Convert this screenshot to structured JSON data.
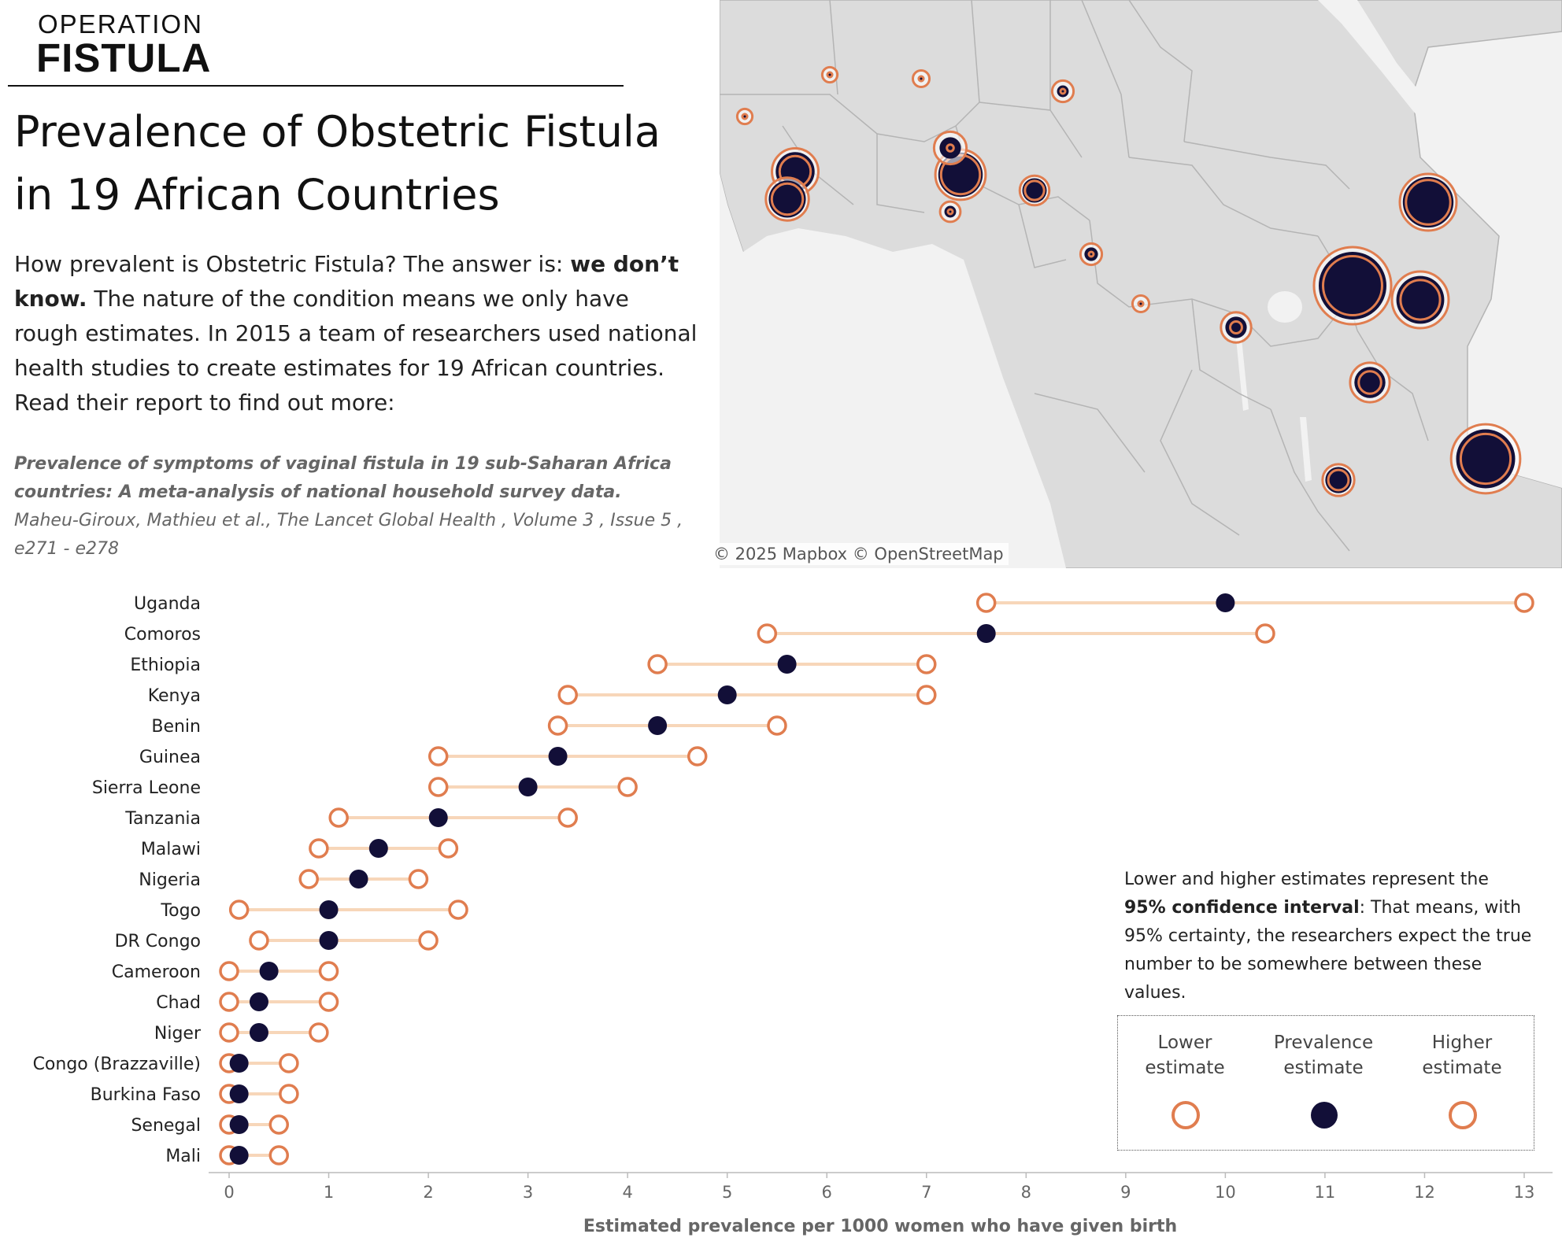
{
  "logo": {
    "line1": "OPERATION",
    "line2": "FISTULA"
  },
  "title": "Prevalence of Obstetric Fistula in 19 African Countries",
  "intro": {
    "part1": "How prevalent is Obstetric Fistula? The answer is: ",
    "bold": "we don’t know.",
    "part2": " The nature of the condition means we only have rough estimates. In 2015 a team of researchers used national health studies to create estimates for 19 African countries. Read their report to find out more:"
  },
  "citation": {
    "bold": "Prevalence of symptoms of vaginal fistula in 19 sub-Saharan Africa countries: A meta-analysis of national household survey data.",
    "rest": " Maheu-Giroux, Mathieu et al., The Lancet Global Health , Volume 3 , Issue 5 , e271 - e278"
  },
  "map_credit": "© 2025 Mapbox  © OpenStreetMap",
  "note": {
    "part1": "Lower and higher estimates represent the ",
    "bold": "95% confidence interval",
    "part2": ": That means, with 95% certainty, the researchers expect the true number to be somewhere between these values."
  },
  "legend": {
    "lower": "Lower estimate",
    "prevalence": "Prevalence estimate",
    "higher": "Higher estimate"
  },
  "colors": {
    "navy": "#120f38",
    "orange": "#e07d4f",
    "range": "#f7d6b9",
    "land": "#dcdcdc",
    "border": "#b4b4b4",
    "water": "#f2f2f2"
  },
  "chart_data": {
    "type": "dot-range",
    "xlabel": "Estimated prevalence per 1000 women who have given birth",
    "xlim": [
      0,
      13
    ],
    "xticks": [
      0,
      1,
      2,
      3,
      4,
      5,
      6,
      7,
      8,
      9,
      10,
      11,
      12,
      13
    ],
    "series": [
      {
        "name": "Lower estimate",
        "key": "low"
      },
      {
        "name": "Prevalence estimate",
        "key": "mid"
      },
      {
        "name": "Higher estimate",
        "key": "high"
      }
    ],
    "countries": [
      {
        "name": "Uganda",
        "low": 7.6,
        "mid": 10.0,
        "high": 13.0
      },
      {
        "name": "Comoros",
        "low": 5.4,
        "mid": 7.6,
        "high": 10.4
      },
      {
        "name": "Ethiopia",
        "low": 4.3,
        "mid": 5.6,
        "high": 7.0
      },
      {
        "name": "Kenya",
        "low": 3.4,
        "mid": 5.0,
        "high": 7.0
      },
      {
        "name": "Benin",
        "low": 3.3,
        "mid": 4.3,
        "high": 5.5
      },
      {
        "name": "Guinea",
        "low": 2.1,
        "mid": 3.3,
        "high": 4.7
      },
      {
        "name": "Sierra Leone",
        "low": 2.1,
        "mid": 3.0,
        "high": 4.0
      },
      {
        "name": "Tanzania",
        "low": 1.1,
        "mid": 2.1,
        "high": 3.4
      },
      {
        "name": "Malawi",
        "low": 0.9,
        "mid": 1.5,
        "high": 2.2
      },
      {
        "name": "Nigeria",
        "low": 0.8,
        "mid": 1.3,
        "high": 1.9
      },
      {
        "name": "Togo",
        "low": 0.1,
        "mid": 1.0,
        "high": 2.3
      },
      {
        "name": "DR Congo",
        "low": 0.3,
        "mid": 1.0,
        "high": 2.0
      },
      {
        "name": "Cameroon",
        "low": 0.0,
        "mid": 0.4,
        "high": 1.0
      },
      {
        "name": "Chad",
        "low": 0.0,
        "mid": 0.3,
        "high": 1.0
      },
      {
        "name": "Niger",
        "low": 0.0,
        "mid": 0.3,
        "high": 0.9
      },
      {
        "name": "Congo (Brazzaville)",
        "low": 0.0,
        "mid": 0.1,
        "high": 0.6
      },
      {
        "name": "Burkina Faso",
        "low": 0.0,
        "mid": 0.1,
        "high": 0.6
      },
      {
        "name": "Senegal",
        "low": 0.0,
        "mid": 0.1,
        "high": 0.5
      },
      {
        "name": "Mali",
        "low": 0.0,
        "mid": 0.1,
        "high": 0.5
      }
    ]
  }
}
